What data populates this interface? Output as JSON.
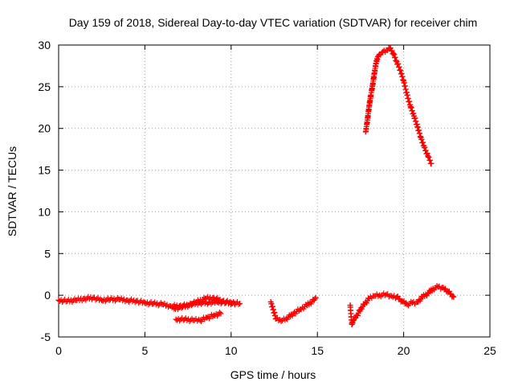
{
  "chart_data": {
    "type": "scatter",
    "title": "Day 159 of 2018, Sidereal Day-to-day VTEC variation (SDTVAR) for receiver chim",
    "xlabel": "GPS time / hours",
    "ylabel": "SDTVAR / TECUs",
    "xlim": [
      0,
      25
    ],
    "ylim": [
      -5,
      30
    ],
    "x_ticks": [
      0,
      5,
      10,
      15,
      20,
      25
    ],
    "y_ticks": [
      -5,
      0,
      5,
      10,
      15,
      20,
      25,
      30
    ],
    "grid": true,
    "marker": "+",
    "series_color": "#ff0000",
    "series": [
      {
        "name": "SDTVAR",
        "segments": [
          {
            "x": [
              0.0,
              0.5,
              1.0,
              1.5,
              2.0,
              2.5,
              3.0,
              3.5,
              4.0,
              4.5,
              5.0,
              5.5,
              6.0,
              6.5,
              7.0,
              7.5,
              8.0,
              8.5,
              9.0,
              9.5,
              10.0,
              10.5
            ],
            "y": [
              -0.6,
              -0.7,
              -0.6,
              -0.4,
              -0.3,
              -0.6,
              -0.5,
              -0.5,
              -0.6,
              -0.7,
              -0.9,
              -1.0,
              -1.1,
              -1.3,
              -1.3,
              -1.2,
              -0.8,
              -0.4,
              -0.3,
              -0.7,
              -0.9,
              -1.0
            ]
          },
          {
            "x": [
              6.7,
              7.2,
              7.7,
              8.2,
              8.7,
              9.2,
              9.7,
              10.2
            ],
            "y": [
              -1.6,
              -1.4,
              -1.1,
              -0.9,
              -0.9,
              -0.8,
              -0.9,
              -1.0
            ]
          },
          {
            "x": [
              6.8,
              7.3,
              7.8,
              8.2,
              8.6,
              9.0,
              9.4
            ],
            "y": [
              -2.9,
              -2.9,
              -3.0,
              -3.0,
              -2.7,
              -2.4,
              -2.2
            ]
          },
          {
            "x": [
              12.3,
              12.6,
              12.9,
              13.2,
              13.6,
              14.0,
              14.4,
              14.8,
              14.9
            ],
            "y": [
              -0.8,
              -2.8,
              -3.1,
              -2.8,
              -2.2,
              -1.7,
              -1.2,
              -0.6,
              -0.3
            ]
          },
          {
            "x": [
              16.9,
              17.0,
              17.1,
              17.3,
              17.5,
              17.7,
              18.0,
              18.3,
              18.6,
              19.0,
              19.3,
              19.6,
              19.9,
              20.2,
              20.5,
              20.8,
              21.1,
              21.4,
              21.7,
              22.0,
              22.3,
              22.6,
              22.9
            ],
            "y": [
              -1.2,
              -3.5,
              -3.0,
              -2.4,
              -1.7,
              -1.1,
              -0.4,
              -0.1,
              0.0,
              0.1,
              -0.1,
              -0.2,
              -0.7,
              -1.1,
              -0.9,
              -0.8,
              -0.2,
              0.2,
              0.8,
              1.0,
              0.9,
              0.4,
              -0.2
            ]
          },
          {
            "x": [
              17.8,
              17.9,
              18.0,
              18.1,
              18.2,
              18.3,
              18.4,
              18.5,
              18.6,
              18.8,
              19.0,
              19.2,
              19.4,
              19.6,
              19.8,
              20.0,
              20.2,
              20.4,
              20.6,
              20.8,
              21.0,
              21.2,
              21.4,
              21.6
            ],
            "y": [
              19.6,
              21.0,
              22.7,
              24.0,
              25.2,
              26.6,
              27.8,
              28.6,
              28.9,
              29.2,
              29.4,
              29.6,
              29.0,
              28.0,
              27.0,
              25.7,
              24.0,
              22.6,
              21.5,
              20.2,
              18.9,
              17.7,
              16.7,
              15.8
            ]
          }
        ]
      }
    ]
  }
}
